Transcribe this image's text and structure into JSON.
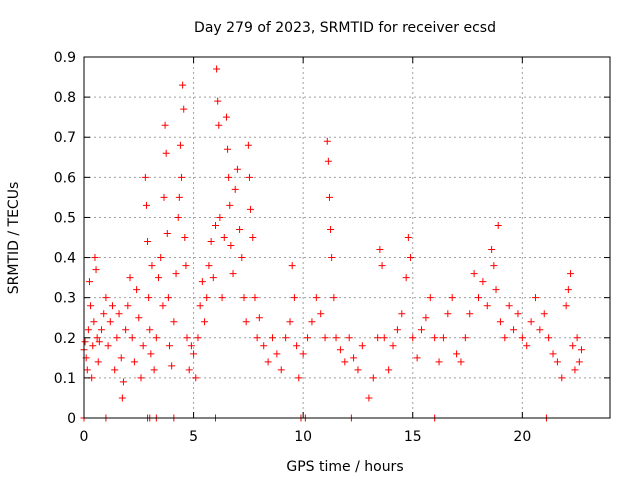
{
  "chart_data": {
    "type": "scatter",
    "title": "Day 279 of 2023, SRMTID for receiver ecsd",
    "xlabel": "GPS time / hours",
    "ylabel": "SRMTID / TECUs",
    "xlim": [
      0,
      24
    ],
    "ylim": [
      0,
      0.9
    ],
    "xticks": [
      0,
      5,
      10,
      15,
      20
    ],
    "xtick_labels": [
      "0",
      "5",
      "10",
      "15",
      "20"
    ],
    "yticks": [
      0,
      0.1,
      0.2,
      0.3,
      0.4,
      0.5,
      0.6,
      0.7,
      0.8,
      0.9
    ],
    "ytick_labels": [
      "0",
      "0.1",
      "0.2",
      "0.3",
      "0.4",
      "0.5",
      "0.6",
      "0.7",
      "0.8",
      "0.9"
    ],
    "grid": true,
    "marker": "plus",
    "color": "#ff0000",
    "series": [
      {
        "name": "SRMTID",
        "points": [
          [
            0.0,
            0.17
          ],
          [
            0.05,
            0.19
          ],
          [
            0.1,
            0.15
          ],
          [
            0.15,
            0.12
          ],
          [
            0.2,
            0.22
          ],
          [
            0.25,
            0.34
          ],
          [
            0.3,
            0.28
          ],
          [
            0.35,
            0.1
          ],
          [
            0.4,
            0.18
          ],
          [
            0.45,
            0.24
          ],
          [
            0.5,
            0.4
          ],
          [
            0.55,
            0.37
          ],
          [
            0.6,
            0.2
          ],
          [
            0.65,
            0.14
          ],
          [
            0.7,
            0.19
          ],
          [
            0.8,
            0.22
          ],
          [
            0.9,
            0.26
          ],
          [
            1.0,
            0.3
          ],
          [
            1.1,
            0.18
          ],
          [
            1.2,
            0.24
          ],
          [
            1.3,
            0.28
          ],
          [
            1.4,
            0.12
          ],
          [
            1.5,
            0.2
          ],
          [
            1.6,
            0.26
          ],
          [
            1.7,
            0.15
          ],
          [
            1.75,
            0.05
          ],
          [
            1.8,
            0.09
          ],
          [
            1.9,
            0.22
          ],
          [
            2.0,
            0.28
          ],
          [
            2.1,
            0.35
          ],
          [
            2.2,
            0.2
          ],
          [
            2.3,
            0.14
          ],
          [
            2.4,
            0.32
          ],
          [
            2.5,
            0.25
          ],
          [
            2.6,
            0.1
          ],
          [
            2.7,
            0.18
          ],
          [
            2.8,
            0.6
          ],
          [
            2.85,
            0.53
          ],
          [
            2.9,
            0.44
          ],
          [
            2.95,
            0.3
          ],
          [
            3.0,
            0.22
          ],
          [
            3.05,
            0.16
          ],
          [
            3.1,
            0.38
          ],
          [
            3.2,
            0.12
          ],
          [
            3.3,
            0.2
          ],
          [
            3.4,
            0.35
          ],
          [
            3.5,
            0.4
          ],
          [
            3.6,
            0.28
          ],
          [
            3.65,
            0.55
          ],
          [
            3.7,
            0.73
          ],
          [
            3.75,
            0.66
          ],
          [
            3.8,
            0.46
          ],
          [
            3.85,
            0.3
          ],
          [
            3.9,
            0.18
          ],
          [
            4.0,
            0.13
          ],
          [
            4.1,
            0.24
          ],
          [
            4.2,
            0.36
          ],
          [
            4.3,
            0.5
          ],
          [
            4.35,
            0.55
          ],
          [
            4.4,
            0.68
          ],
          [
            4.45,
            0.6
          ],
          [
            4.5,
            0.83
          ],
          [
            4.55,
            0.77
          ],
          [
            4.6,
            0.45
          ],
          [
            4.65,
            0.38
          ],
          [
            4.7,
            0.2
          ],
          [
            4.8,
            0.12
          ],
          [
            4.9,
            0.18
          ],
          [
            5.0,
            0.16
          ],
          [
            5.1,
            0.1
          ],
          [
            5.2,
            0.2
          ],
          [
            5.3,
            0.28
          ],
          [
            5.4,
            0.34
          ],
          [
            5.5,
            0.24
          ],
          [
            5.6,
            0.3
          ],
          [
            5.7,
            0.38
          ],
          [
            5.8,
            0.44
          ],
          [
            5.9,
            0.35
          ],
          [
            6.0,
            0.48
          ],
          [
            6.05,
            0.87
          ],
          [
            6.1,
            0.79
          ],
          [
            6.15,
            0.73
          ],
          [
            6.2,
            0.5
          ],
          [
            6.3,
            0.3
          ],
          [
            6.4,
            0.45
          ],
          [
            6.5,
            0.75
          ],
          [
            6.55,
            0.67
          ],
          [
            6.6,
            0.6
          ],
          [
            6.65,
            0.53
          ],
          [
            6.7,
            0.43
          ],
          [
            6.8,
            0.36
          ],
          [
            6.9,
            0.57
          ],
          [
            7.0,
            0.62
          ],
          [
            7.1,
            0.47
          ],
          [
            7.2,
            0.4
          ],
          [
            7.3,
            0.3
          ],
          [
            7.4,
            0.24
          ],
          [
            7.5,
            0.68
          ],
          [
            7.55,
            0.6
          ],
          [
            7.6,
            0.52
          ],
          [
            7.7,
            0.45
          ],
          [
            7.8,
            0.3
          ],
          [
            7.9,
            0.2
          ],
          [
            8.0,
            0.25
          ],
          [
            8.2,
            0.18
          ],
          [
            8.4,
            0.14
          ],
          [
            8.6,
            0.2
          ],
          [
            8.8,
            0.16
          ],
          [
            9.0,
            0.12
          ],
          [
            9.2,
            0.2
          ],
          [
            9.4,
            0.24
          ],
          [
            9.5,
            0.38
          ],
          [
            9.6,
            0.3
          ],
          [
            9.7,
            0.18
          ],
          [
            9.8,
            0.1
          ],
          [
            10.0,
            0.16
          ],
          [
            10.2,
            0.2
          ],
          [
            10.4,
            0.24
          ],
          [
            10.6,
            0.3
          ],
          [
            10.8,
            0.26
          ],
          [
            11.0,
            0.2
          ],
          [
            11.1,
            0.69
          ],
          [
            11.15,
            0.64
          ],
          [
            11.2,
            0.55
          ],
          [
            11.25,
            0.47
          ],
          [
            11.3,
            0.4
          ],
          [
            11.4,
            0.3
          ],
          [
            11.5,
            0.2
          ],
          [
            11.7,
            0.17
          ],
          [
            11.9,
            0.14
          ],
          [
            12.1,
            0.2
          ],
          [
            12.3,
            0.15
          ],
          [
            12.5,
            0.12
          ],
          [
            12.7,
            0.18
          ],
          [
            13.0,
            0.05
          ],
          [
            13.2,
            0.1
          ],
          [
            13.4,
            0.2
          ],
          [
            13.5,
            0.42
          ],
          [
            13.6,
            0.38
          ],
          [
            13.7,
            0.2
          ],
          [
            13.9,
            0.12
          ],
          [
            14.1,
            0.18
          ],
          [
            14.3,
            0.22
          ],
          [
            14.5,
            0.26
          ],
          [
            14.7,
            0.35
          ],
          [
            14.8,
            0.45
          ],
          [
            14.9,
            0.4
          ],
          [
            15.0,
            0.2
          ],
          [
            15.2,
            0.15
          ],
          [
            15.4,
            0.22
          ],
          [
            15.6,
            0.25
          ],
          [
            15.8,
            0.3
          ],
          [
            16.0,
            0.2
          ],
          [
            16.2,
            0.14
          ],
          [
            16.4,
            0.2
          ],
          [
            16.6,
            0.26
          ],
          [
            16.8,
            0.3
          ],
          [
            17.0,
            0.16
          ],
          [
            17.2,
            0.14
          ],
          [
            17.4,
            0.2
          ],
          [
            17.6,
            0.26
          ],
          [
            17.8,
            0.36
          ],
          [
            18.0,
            0.3
          ],
          [
            18.2,
            0.34
          ],
          [
            18.4,
            0.28
          ],
          [
            18.6,
            0.42
          ],
          [
            18.7,
            0.38
          ],
          [
            18.8,
            0.32
          ],
          [
            18.9,
            0.48
          ],
          [
            19.0,
            0.24
          ],
          [
            19.2,
            0.2
          ],
          [
            19.4,
            0.28
          ],
          [
            19.6,
            0.22
          ],
          [
            19.8,
            0.26
          ],
          [
            20.0,
            0.2
          ],
          [
            20.2,
            0.18
          ],
          [
            20.4,
            0.24
          ],
          [
            20.6,
            0.3
          ],
          [
            20.8,
            0.22
          ],
          [
            21.0,
            0.26
          ],
          [
            21.2,
            0.2
          ],
          [
            21.4,
            0.16
          ],
          [
            21.6,
            0.14
          ],
          [
            21.8,
            0.1
          ],
          [
            22.0,
            0.28
          ],
          [
            22.1,
            0.32
          ],
          [
            22.2,
            0.36
          ],
          [
            22.3,
            0.18
          ],
          [
            22.4,
            0.12
          ],
          [
            22.5,
            0.2
          ],
          [
            22.6,
            0.14
          ],
          [
            22.7,
            0.17
          ],
          [
            0.0,
            0.0
          ],
          [
            1.0,
            0.0
          ],
          [
            2.9,
            0.0
          ],
          [
            3.0,
            0.0
          ],
          [
            3.3,
            0.0
          ],
          [
            4.1,
            0.0
          ],
          [
            6.0,
            0.0
          ],
          [
            9.9,
            0.0
          ],
          [
            10.1,
            0.0
          ],
          [
            12.2,
            0.0
          ],
          [
            16.0,
            0.0
          ],
          [
            21.1,
            0.0
          ]
        ]
      }
    ]
  }
}
